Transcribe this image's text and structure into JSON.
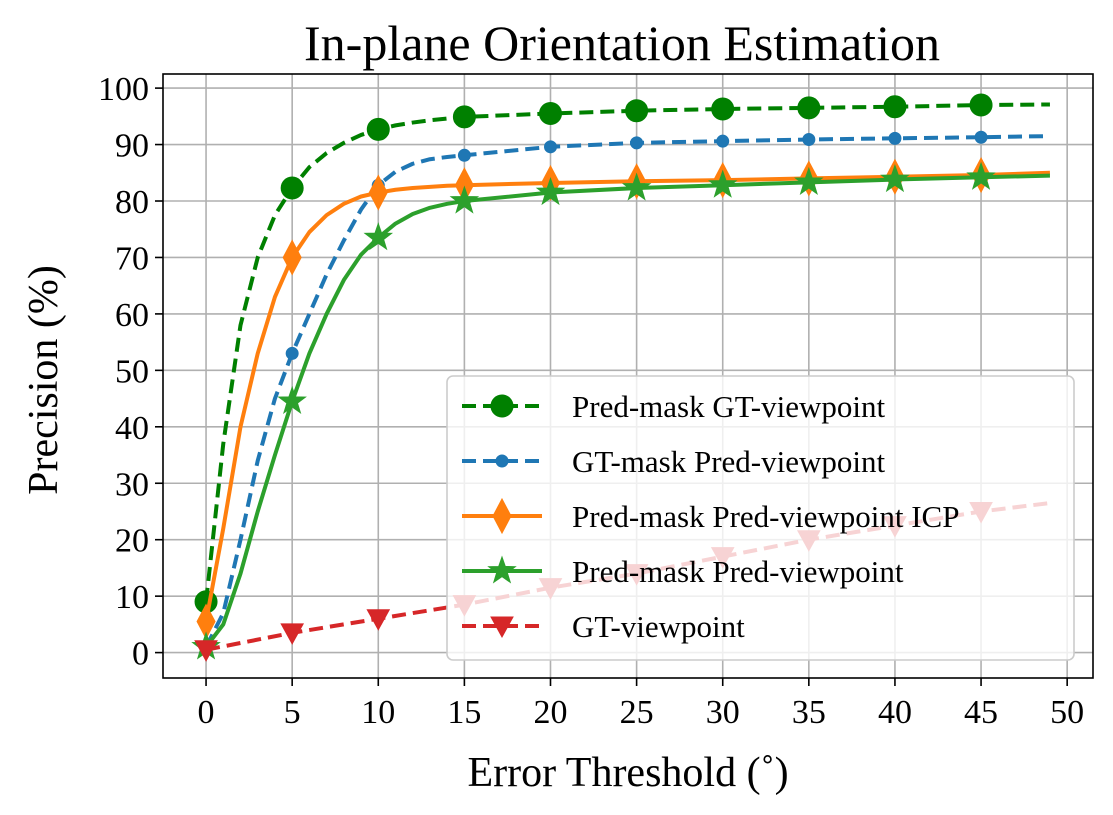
{
  "chart_data": {
    "type": "line",
    "title": "In-plane Orientation Estimation",
    "xlabel": "Error Threshold (˚)",
    "ylabel": "Precision (%)",
    "xlim": [
      -2.5,
      51.5
    ],
    "ylim": [
      -4.5,
      102.5
    ],
    "xticks": [
      0,
      5,
      10,
      15,
      20,
      25,
      30,
      35,
      40,
      45,
      50
    ],
    "yticks": [
      0,
      10,
      20,
      30,
      40,
      50,
      60,
      70,
      80,
      90,
      100
    ],
    "grid": true,
    "legend_position": "lower-right",
    "series": [
      {
        "name": "Pred-mask GT-viewpoint",
        "color": "#008000",
        "dash": "dashed",
        "marker": "circle",
        "x": [
          0,
          1,
          2,
          3,
          4,
          5,
          6,
          7,
          8,
          9,
          10,
          11,
          12,
          13,
          14,
          15,
          20,
          25,
          30,
          35,
          40,
          45,
          49
        ],
        "y": [
          9,
          37,
          58,
          70,
          77.5,
          82.3,
          86,
          88.5,
          90.3,
          91.7,
          92.7,
          93.4,
          93.9,
          94.3,
          94.6,
          94.9,
          95.5,
          96,
          96.3,
          96.5,
          96.7,
          97,
          97.1
        ],
        "marker_x": [
          0,
          5,
          10,
          15,
          20,
          25,
          30,
          35,
          40,
          45
        ],
        "marker_y": [
          9,
          82.3,
          92.7,
          94.9,
          95.5,
          96,
          96.3,
          96.5,
          96.7,
          97
        ]
      },
      {
        "name": "GT-mask Pred-viewpoint",
        "color": "#1f77b4",
        "dash": "dashed",
        "marker": "dot",
        "x": [
          0,
          1,
          2,
          3,
          4,
          5,
          6,
          7,
          8,
          9,
          10,
          11,
          12,
          13,
          14,
          15,
          20,
          25,
          30,
          35,
          40,
          45,
          49
        ],
        "y": [
          1,
          7,
          20,
          34,
          45,
          53,
          60,
          67,
          73,
          78.5,
          82.8,
          85.2,
          86.6,
          87.4,
          87.8,
          88.1,
          89.6,
          90.3,
          90.6,
          90.9,
          91.1,
          91.3,
          91.5
        ],
        "marker_x": [
          0,
          5,
          10,
          15,
          20,
          25,
          30,
          35,
          40,
          45
        ],
        "marker_y": [
          1,
          53,
          82.8,
          88.1,
          89.6,
          90.3,
          90.6,
          90.9,
          91.1,
          91.3
        ]
      },
      {
        "name": "Pred-mask Pred-viewpoint ICP",
        "color": "#ff7f0e",
        "dash": "solid",
        "marker": "diamond",
        "x": [
          0,
          1,
          2,
          3,
          4,
          5,
          6,
          7,
          8,
          9,
          10,
          11,
          12,
          13,
          14,
          15,
          20,
          25,
          30,
          35,
          40,
          45,
          49
        ],
        "y": [
          5.5,
          22,
          40,
          53,
          63,
          70,
          74.5,
          77.5,
          79.5,
          80.8,
          81.5,
          82,
          82.3,
          82.5,
          82.7,
          82.8,
          83.2,
          83.5,
          83.7,
          84,
          84.3,
          84.6,
          85
        ],
        "marker_x": [
          0,
          5,
          10,
          15,
          20,
          25,
          30,
          35,
          40,
          45
        ],
        "marker_y": [
          5.5,
          70,
          81.5,
          82.8,
          83.2,
          83.5,
          83.7,
          84,
          84.3,
          84.6
        ]
      },
      {
        "name": "Pred-mask Pred-viewpoint",
        "color": "#2ca02c",
        "dash": "solid",
        "marker": "star",
        "x": [
          0,
          1,
          2,
          3,
          4,
          5,
          6,
          7,
          8,
          9,
          10,
          11,
          12,
          13,
          14,
          15,
          20,
          25,
          30,
          35,
          40,
          45,
          49
        ],
        "y": [
          1,
          5,
          14,
          25,
          35,
          44.5,
          53,
          60,
          66,
          70.5,
          73.5,
          76,
          77.7,
          78.8,
          79.5,
          80,
          81.5,
          82.3,
          82.8,
          83.3,
          83.8,
          84.2,
          84.5
        ],
        "marker_x": [
          0,
          5,
          10,
          15,
          20,
          25,
          30,
          35,
          40,
          45
        ],
        "marker_y": [
          1,
          44.5,
          73.5,
          80,
          81.5,
          82.3,
          82.8,
          83.3,
          83.8,
          84.2
        ]
      },
      {
        "name": "GT-viewpoint",
        "color": "#d62728",
        "dash": "dashed",
        "marker": "triangle-down",
        "x": [
          0,
          5,
          10,
          15,
          20,
          25,
          30,
          35,
          40,
          45,
          49
        ],
        "y": [
          0.5,
          3.5,
          6,
          8.5,
          11.5,
          14,
          17,
          20,
          22.5,
          25,
          26.5
        ],
        "marker_x": [
          0,
          5,
          10,
          15,
          20,
          25,
          30,
          35,
          40,
          45
        ],
        "marker_y": [
          0.5,
          3.5,
          6,
          8.5,
          11.5,
          14,
          17,
          20,
          22.5,
          25
        ]
      }
    ]
  }
}
